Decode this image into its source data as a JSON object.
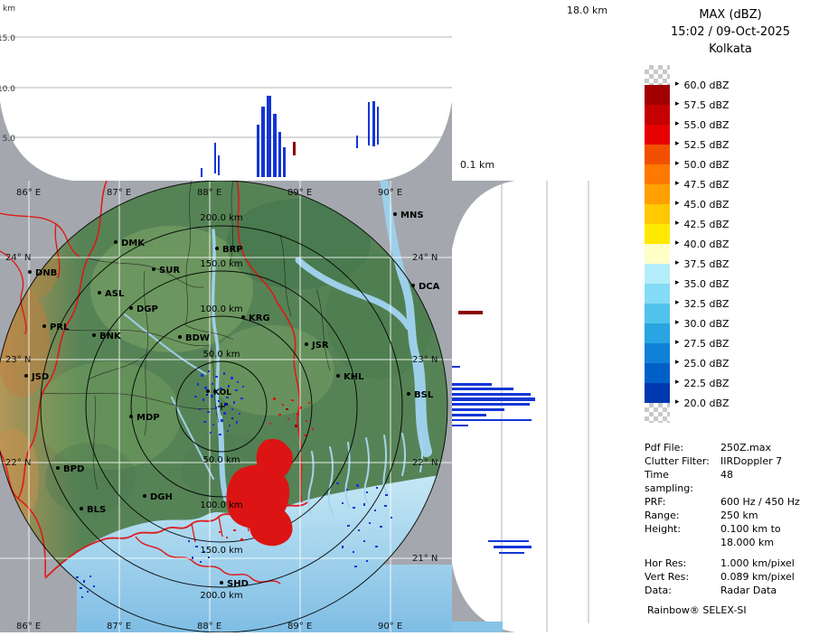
{
  "header": {
    "product_title": "MAX (dBZ)",
    "datetime": "15:02 / 09-Oct-2025",
    "site": "Kolkata"
  },
  "axes": {
    "top_max_height": "18.0 km",
    "side_min_height": "0.1 km",
    "height_ticks": [
      "km",
      "15.0",
      "10.0",
      "5.0"
    ]
  },
  "legend": {
    "cells": [
      "checker",
      "#a00000",
      "#c40000",
      "#e60000",
      "#f25000",
      "#ff7800",
      "#ffa000",
      "#ffc800",
      "#ffe800",
      "#ffffc8",
      "#b4eefa",
      "#84dcf6",
      "#50c3ec",
      "#28a5e2",
      "#0f82d8",
      "#0060c8",
      "#0038b0",
      "checker"
    ],
    "labels": [
      "60.0 dBZ",
      "57.5 dBZ",
      "55.0 dBZ",
      "52.5 dBZ",
      "50.0 dBZ",
      "47.5 dBZ",
      "45.0 dBZ",
      "42.5 dBZ",
      "40.0 dBZ",
      "37.5 dBZ",
      "35.0 dBZ",
      "32.5 dBZ",
      "30.0 dBZ",
      "27.5 dBZ",
      "25.0 dBZ",
      "22.5 dBZ",
      "20.0 dBZ"
    ]
  },
  "info": {
    "rows": [
      {
        "label": "Pdf File:",
        "value": "250Z.max"
      },
      {
        "label": "Clutter Filter:",
        "value": "IIRDoppler 7"
      },
      {
        "label": "Time sampling:",
        "value": "48"
      },
      {
        "label": "PRF:",
        "value": "600 Hz / 450 Hz"
      },
      {
        "label": "Range:",
        "value": "250 km"
      },
      {
        "label": "Height:",
        "value": "0.100 km to"
      },
      {
        "label": "",
        "value": "18.000 km"
      },
      {
        "label": "",
        "value": ""
      },
      {
        "label": "Hor Res:",
        "value": "1.000 km/pixel"
      },
      {
        "label": "Vert Res:",
        "value": "0.089 km/pixel"
      },
      {
        "label": "Data:",
        "value": "Radar Data"
      }
    ],
    "brand": "Rainbow® SELEX-SI"
  },
  "map": {
    "range_labels_above": [
      "200.0 km",
      "150.0 km",
      "100.0 km",
      "50.0 km"
    ],
    "range_labels_below": [
      "50.0 km",
      "100.0 km",
      "150.0 km",
      "200.0 km"
    ],
    "lon_labels": [
      "86° E",
      "87° E",
      "88° E",
      "89° E",
      "90° E"
    ],
    "lat_labels": [
      "24° N",
      "23° N",
      "22° N",
      "21° N"
    ],
    "cities": [
      "MNS",
      "DMK",
      "BRP",
      "SUR",
      "DNB",
      "DCA",
      "ASL",
      "DGP",
      "KRG",
      "PRL",
      "BNK",
      "BDW",
      "JSR",
      "JSD",
      "KHL",
      "BSL",
      "KOL",
      "MDP",
      "BPD",
      "DGH",
      "BLS",
      "SHD"
    ],
    "colors": {
      "out_of_range_gray": "#a4a8ae",
      "land_green": "#568356",
      "sea_blue": "#9fd0e8",
      "echo_blue": "#1236d6",
      "echo_strong_red": "#dc1414"
    }
  }
}
